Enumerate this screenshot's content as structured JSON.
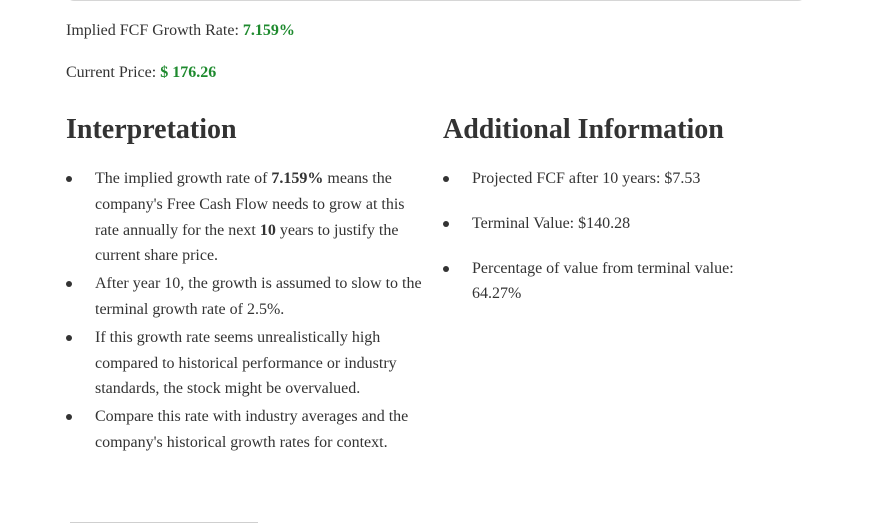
{
  "metrics": {
    "growth_label": "Implied FCF Growth Rate: ",
    "growth_value": "7.159%",
    "price_label": "Current Price: ",
    "price_value": "$ 176.26",
    "value_color": "#1e8a2e"
  },
  "interpretation": {
    "heading": "Interpretation",
    "item1": {
      "pre": "The implied growth rate of ",
      "rate": "7.159%",
      "mid": " means the company's Free Cash Flow needs to grow at this rate annually for the next ",
      "years": "10",
      "post": " years to justify the current share price."
    },
    "item2": "After year 10, the growth is assumed to slow to the terminal growth rate of 2.5%.",
    "item3": "If this growth rate seems unrealistically high compared to historical performance or industry standards, the stock might be overvalued.",
    "item4": "Compare this rate with industry averages and the company's historical growth rates for context."
  },
  "additional": {
    "heading": "Additional Information",
    "items": [
      "Projected FCF after 10 years: $7.53",
      "Terminal Value: $140.28",
      "Percentage of value from terminal value: 64.27%"
    ]
  }
}
